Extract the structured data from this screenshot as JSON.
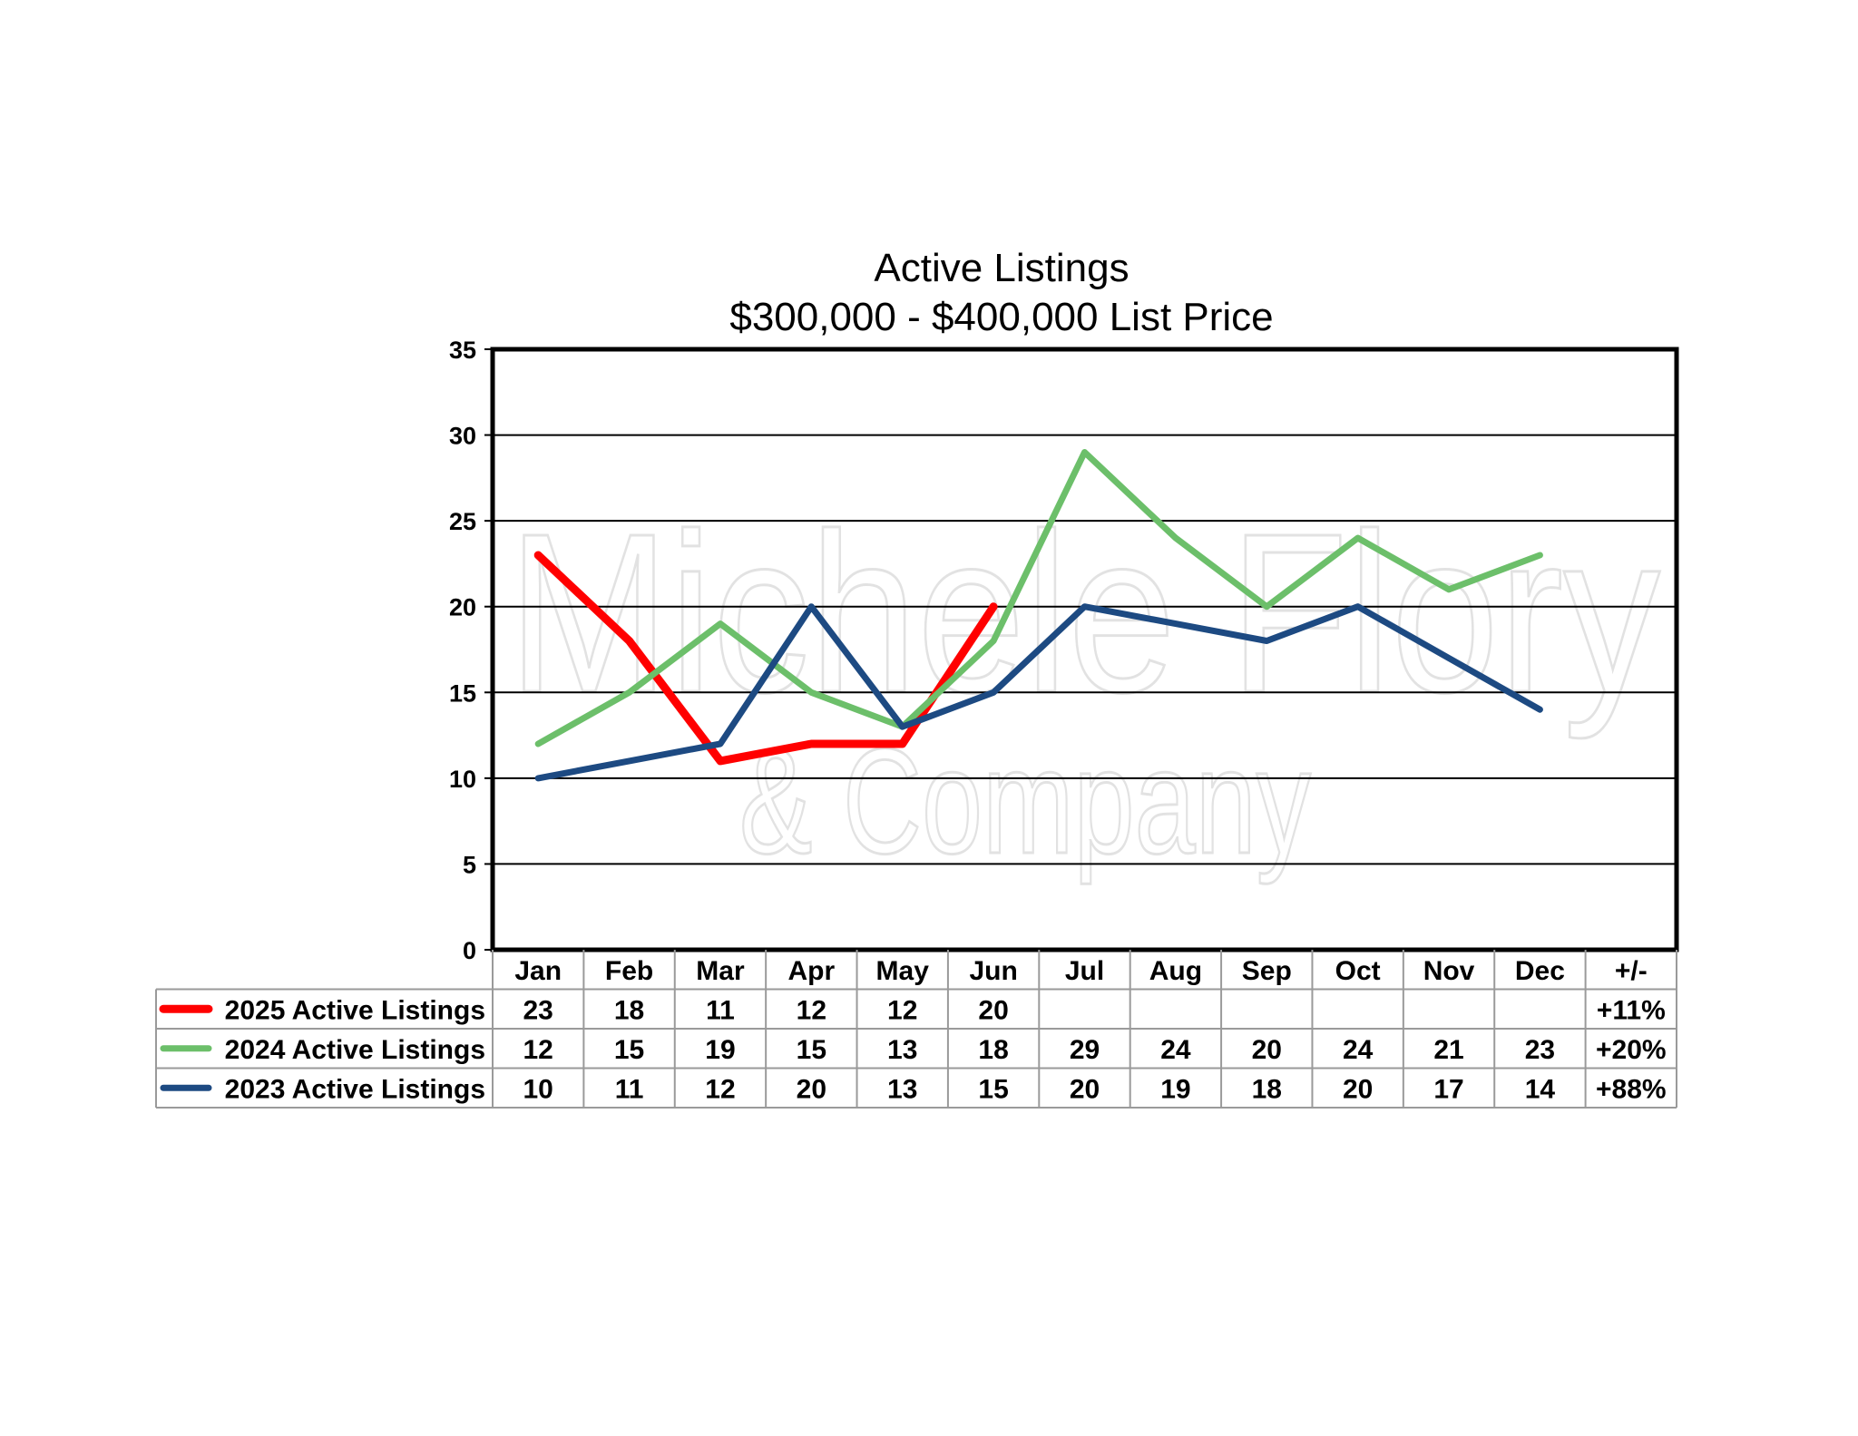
{
  "chart_data": {
    "type": "line",
    "title": "Active Listings",
    "subtitle": "$300,000 - $400,000 List Price",
    "categories": [
      "Jan",
      "Feb",
      "Mar",
      "Apr",
      "May",
      "Jun",
      "Jul",
      "Aug",
      "Sep",
      "Oct",
      "Nov",
      "Dec"
    ],
    "change_header": "+/-",
    "ylim": [
      0,
      35
    ],
    "yticks": [
      0,
      5,
      10,
      15,
      20,
      25,
      30,
      35
    ],
    "grid": true,
    "series": [
      {
        "name": "2025 Active Listings",
        "color": "#ff0000",
        "values": [
          23,
          18,
          11,
          12,
          12,
          20,
          null,
          null,
          null,
          null,
          null,
          null
        ],
        "change": "+11%"
      },
      {
        "name": "2024 Active Listings",
        "color": "#6cbf6a",
        "values": [
          12,
          15,
          19,
          15,
          13,
          18,
          29,
          24,
          20,
          24,
          21,
          23
        ],
        "change": "+20%"
      },
      {
        "name": "2023 Active Listings",
        "color": "#1d4a82",
        "values": [
          10,
          11,
          12,
          20,
          13,
          15,
          20,
          19,
          18,
          20,
          17,
          14
        ],
        "change": "+88%"
      }
    ]
  },
  "watermark": {
    "line1": "Michele Flory",
    "line2": "& Company"
  }
}
